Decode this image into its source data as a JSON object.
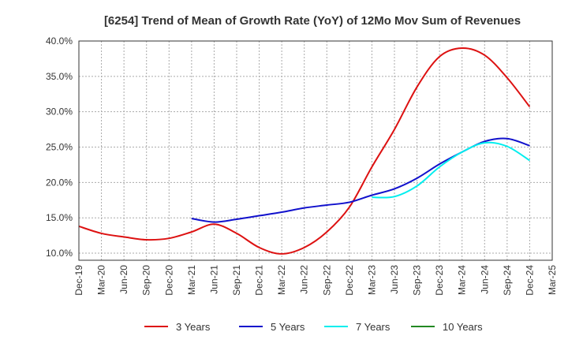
{
  "chart_data": {
    "type": "line",
    "title": "[6254]  Trend of Mean of Growth Rate (YoY) of 12Mo Mov Sum of Revenues",
    "xlabel": "",
    "ylabel": "",
    "ylim": [
      0.09,
      0.4
    ],
    "yticks": [
      0.1,
      0.15,
      0.2,
      0.25,
      0.3,
      0.35,
      0.4
    ],
    "ytick_labels": [
      "10.0%",
      "15.0%",
      "20.0%",
      "25.0%",
      "30.0%",
      "35.0%",
      "40.0%"
    ],
    "xtick_labels": [
      "Dec-19",
      "Mar-20",
      "Jun-20",
      "Sep-20",
      "Dec-20",
      "Mar-21",
      "Jun-21",
      "Sep-21",
      "Dec-21",
      "Mar-22",
      "Jun-22",
      "Sep-22",
      "Dec-22",
      "Mar-23",
      "Jun-23",
      "Sep-23",
      "Dec-23",
      "Mar-24",
      "Jun-24",
      "Sep-24",
      "Dec-24",
      "Mar-25"
    ],
    "grid": true,
    "legend_position": "bottom",
    "series": [
      {
        "name": "3 Years",
        "color": "#dd1111",
        "x": [
          0,
          1,
          2,
          3,
          4,
          5,
          6,
          7,
          8,
          9,
          10,
          11,
          12,
          13,
          14,
          15,
          16,
          17,
          18,
          19,
          20
        ],
        "values": [
          0.138,
          0.128,
          0.123,
          0.119,
          0.121,
          0.13,
          0.141,
          0.128,
          0.108,
          0.099,
          0.108,
          0.13,
          0.165,
          0.222,
          0.275,
          0.335,
          0.378,
          0.39,
          0.38,
          0.348,
          0.307
        ]
      },
      {
        "name": "5 Years",
        "color": "#1111cc",
        "x": [
          5,
          6,
          7,
          8,
          9,
          10,
          11,
          12,
          13,
          14,
          15,
          16,
          17,
          18,
          19,
          20
        ],
        "values": [
          0.149,
          0.144,
          0.148,
          0.153,
          0.158,
          0.164,
          0.168,
          0.172,
          0.182,
          0.191,
          0.206,
          0.226,
          0.243,
          0.258,
          0.262,
          0.252
        ]
      },
      {
        "name": "7 Years",
        "color": "#00eeee",
        "x": [
          13,
          14,
          15,
          16,
          17,
          18,
          19,
          20
        ],
        "values": [
          0.179,
          0.18,
          0.195,
          0.222,
          0.243,
          0.256,
          0.251,
          0.231
        ]
      },
      {
        "name": "10 Years",
        "color": "#228822",
        "x": [],
        "values": []
      }
    ]
  }
}
